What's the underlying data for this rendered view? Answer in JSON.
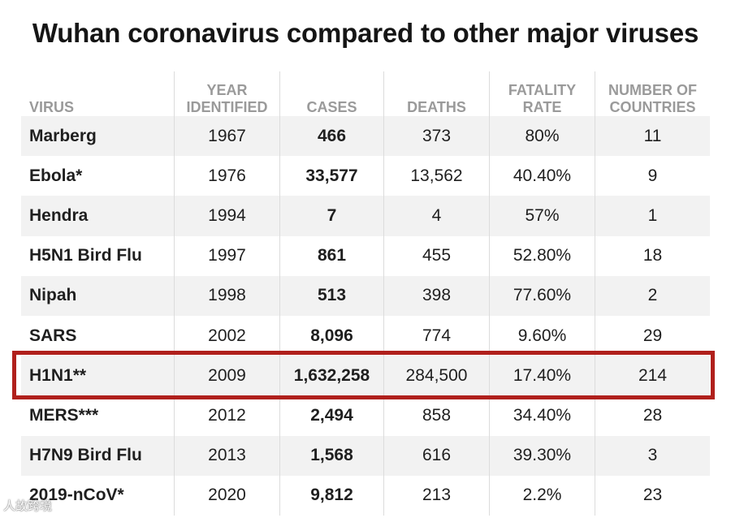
{
  "chart_data": {
    "type": "table",
    "title": "Wuhan coronavirus compared to other major viruses",
    "columns": [
      "VIRUS",
      "YEAR\nIDENTIFIED",
      "CASES",
      "DEATHS",
      "FATALITY\nRATE",
      "NUMBER OF\nCOUNTRIES"
    ],
    "rows": [
      [
        "Marberg",
        "1967",
        "466",
        "373",
        "80%",
        "11"
      ],
      [
        "Ebola*",
        "1976",
        "33,577",
        "13,562",
        "40.40%",
        "9"
      ],
      [
        "Hendra",
        "1994",
        "7",
        "4",
        "57%",
        "1"
      ],
      [
        "H5N1 Bird Flu",
        "1997",
        "861",
        "455",
        "52.80%",
        "18"
      ],
      [
        "Nipah",
        "1998",
        "513",
        "398",
        "77.60%",
        "2"
      ],
      [
        "SARS",
        "2002",
        "8,096",
        "774",
        "9.60%",
        "29"
      ],
      [
        "H1N1**",
        "2009",
        "1,632,258",
        "284,500",
        "17.40%",
        "214"
      ],
      [
        "MERS***",
        "2012",
        "2,494",
        "858",
        "34.40%",
        "28"
      ],
      [
        "H7N9 Bird Flu",
        "2013",
        "1,568",
        "616",
        "39.30%",
        "3"
      ],
      [
        "2019-nCoV*",
        "2020",
        "9,812",
        "213",
        "2.2%",
        "23"
      ]
    ],
    "highlighted_row": "H1N1**",
    "highlight_color": "#b0201c",
    "header_color": "#9a9a9a",
    "stripe_color": "#f2f2f2"
  },
  "watermark": "人故跨境"
}
